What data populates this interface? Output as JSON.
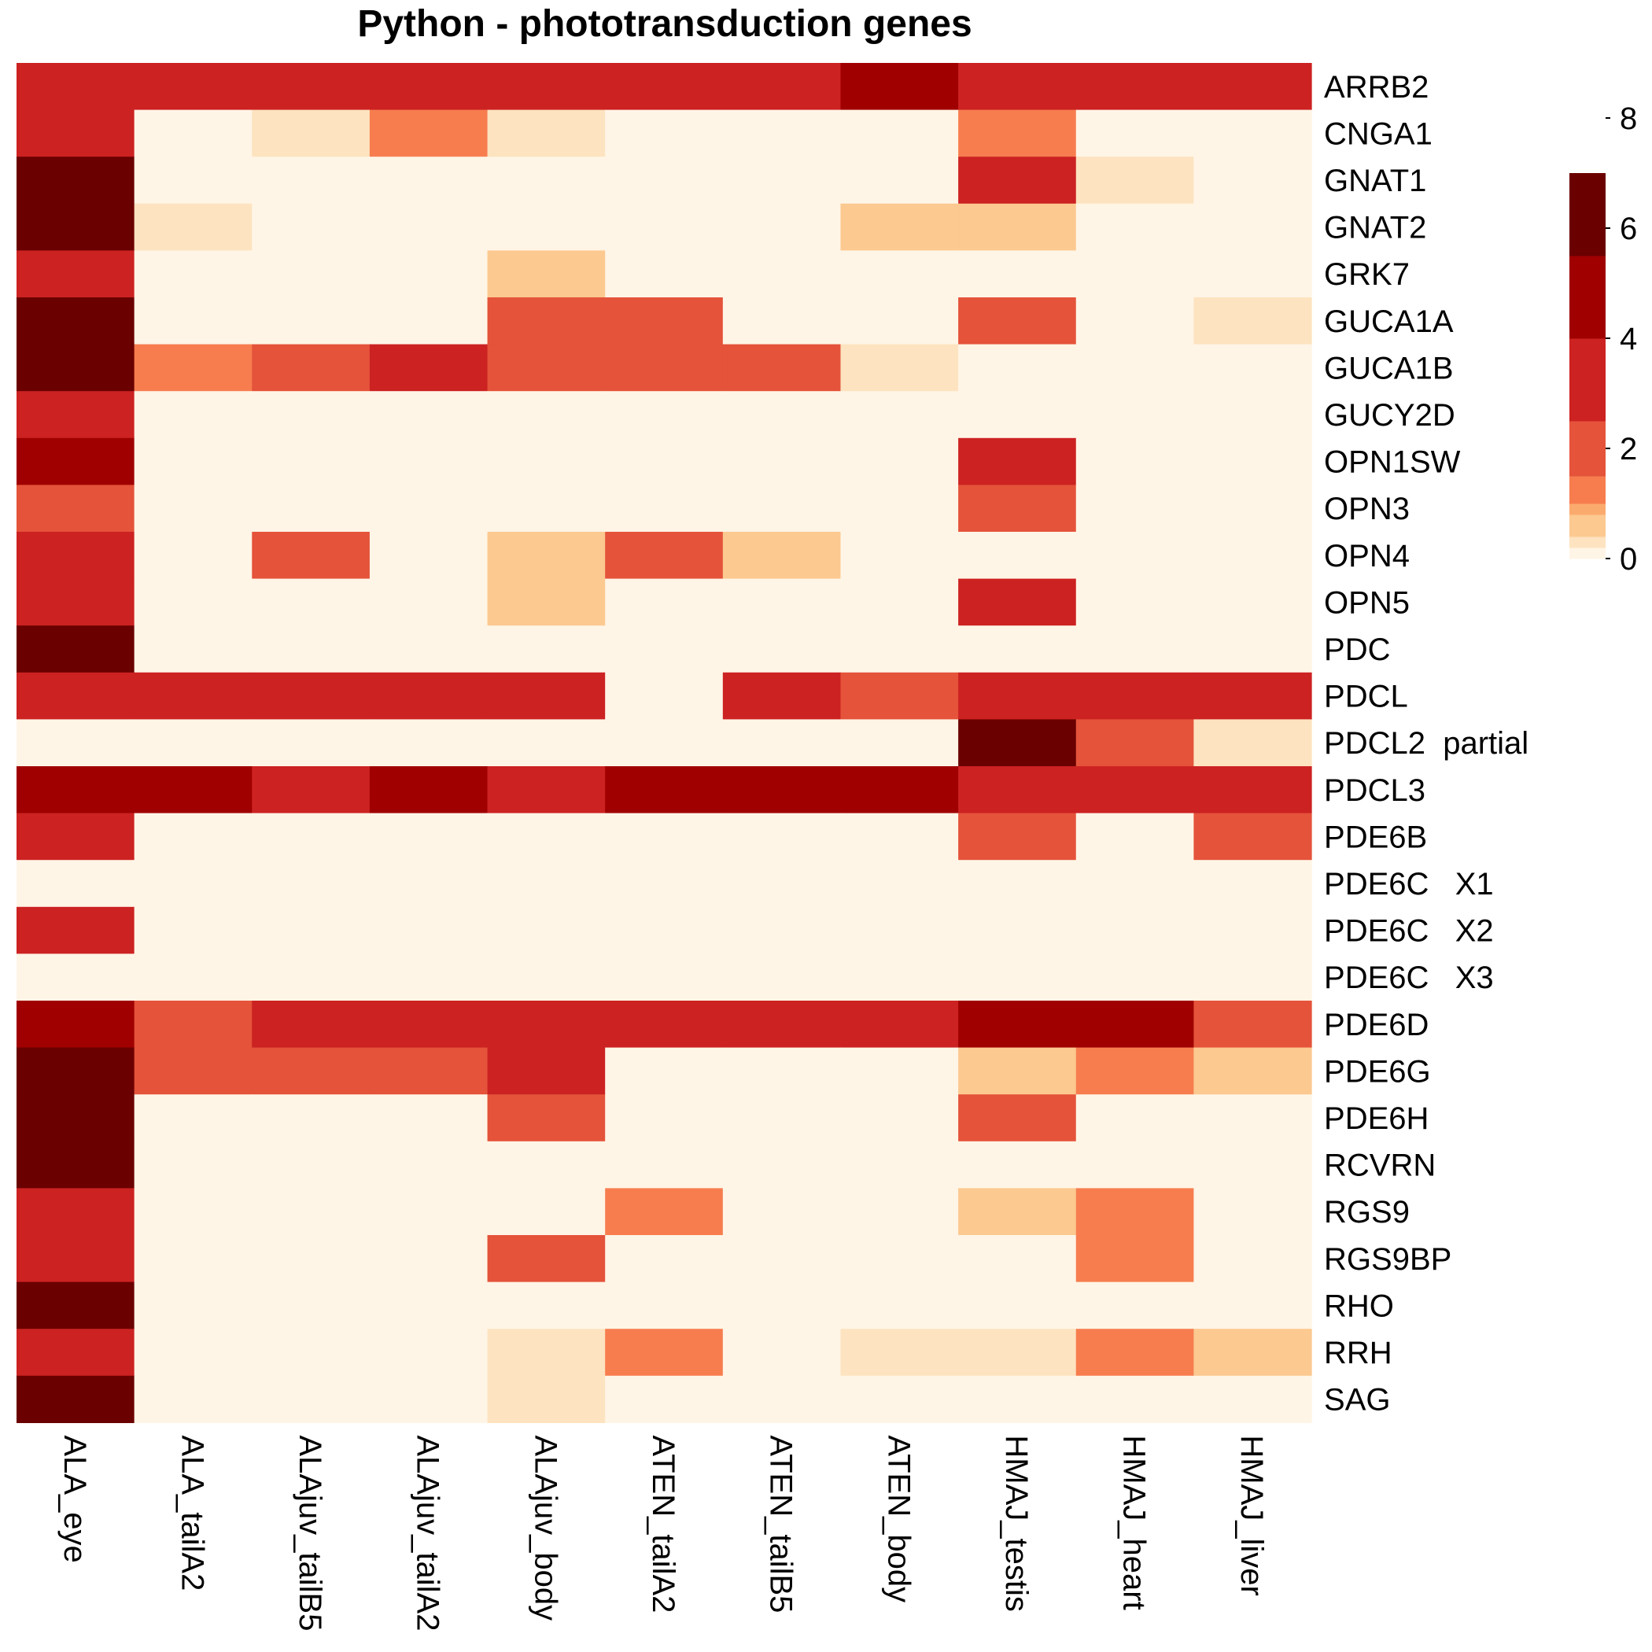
{
  "chart_data": {
    "type": "heatmap",
    "title": "Python - phototransduction genes",
    "rows": [
      "ARRB2",
      "CNGA1",
      "GNAT1",
      "GNAT2",
      "GRK7",
      "GUCA1A",
      "GUCA1B",
      "GUCY2D",
      "OPN1SW",
      "OPN3",
      "OPN4",
      "OPN5",
      "PDC",
      "PDCL",
      "PDCL2  partial",
      "PDCL3",
      "PDE6B",
      "PDE6C   X1",
      "PDE6C   X2",
      "PDE6C   X3",
      "PDE6D",
      "PDE6G",
      "PDE6H",
      "RCVRN",
      "RGS9",
      "RGS9BP",
      "RHO",
      "RRH",
      "SAG"
    ],
    "columns": [
      "ALA_eye",
      "ALA_tailA2",
      "ALAjuv_tailB5",
      "ALAjuv_tailA2",
      "ALAjuv_body",
      "ATEN_tailA2",
      "ATEN_tailB5",
      "ATEN_body",
      "HMAJ_testis",
      "HMAJ_heart",
      "HMAJ_liver"
    ],
    "values": [
      [
        3,
        3,
        3,
        3,
        3,
        3,
        3,
        5,
        3,
        3,
        3
      ],
      [
        3,
        0,
        0.3,
        1.2,
        0.3,
        0,
        0,
        0,
        1.2,
        0,
        0
      ],
      [
        7,
        0,
        0,
        0,
        0,
        0,
        0,
        0,
        3,
        0.3,
        0
      ],
      [
        7,
        0.3,
        0,
        0,
        0,
        0,
        0,
        0.6,
        0.6,
        0,
        0
      ],
      [
        3,
        0,
        0,
        0,
        0.6,
        0,
        0,
        0,
        0,
        0,
        0
      ],
      [
        7,
        0,
        0,
        0,
        2,
        2,
        0,
        0,
        2,
        0,
        0.3
      ],
      [
        7,
        1.2,
        2,
        3,
        2,
        2,
        2,
        0.3,
        0,
        0,
        0
      ],
      [
        3,
        0,
        0,
        0,
        0,
        0,
        0,
        0,
        0,
        0,
        0
      ],
      [
        5,
        0,
        0,
        0,
        0,
        0,
        0,
        0,
        3,
        0,
        0
      ],
      [
        2,
        0,
        0,
        0,
        0,
        0,
        0,
        0,
        2,
        0,
        0
      ],
      [
        3,
        0,
        2,
        0,
        0.6,
        2,
        0.6,
        0,
        0,
        0,
        0
      ],
      [
        3,
        0,
        0,
        0,
        0.6,
        0,
        0,
        0,
        3,
        0,
        0
      ],
      [
        7,
        0,
        0,
        0,
        0,
        0,
        0,
        0,
        0,
        0,
        0
      ],
      [
        3,
        3,
        3,
        3,
        3,
        0,
        3,
        2,
        3,
        3,
        3
      ],
      [
        0,
        0,
        0,
        0,
        0,
        0,
        0,
        0,
        8.5,
        2,
        0.3
      ],
      [
        5,
        5,
        3,
        5,
        3,
        5,
        5,
        5,
        3,
        3,
        3
      ],
      [
        3,
        0,
        0,
        0,
        0,
        0,
        0,
        0,
        2,
        0,
        2
      ],
      [
        0,
        0,
        0,
        0,
        0,
        0,
        0,
        0,
        0,
        0,
        0
      ],
      [
        3,
        0,
        0,
        0,
        0,
        0,
        0,
        0,
        0,
        0,
        0
      ],
      [
        0,
        0,
        0,
        0,
        0,
        0,
        0,
        0,
        0,
        0,
        0
      ],
      [
        5,
        2,
        3,
        3,
        3,
        3,
        3,
        3,
        5,
        5,
        2
      ],
      [
        7,
        2,
        2,
        2,
        3,
        0,
        0,
        0,
        0.6,
        1.2,
        0.6
      ],
      [
        8.5,
        0,
        0,
        0,
        2,
        0,
        0,
        0,
        2,
        0,
        0
      ],
      [
        8.5,
        0,
        0,
        0,
        0,
        0,
        0,
        0,
        0,
        0,
        0
      ],
      [
        3,
        0,
        0,
        0,
        0,
        1.2,
        0,
        0,
        0.6,
        1.2,
        0
      ],
      [
        3,
        0,
        0,
        0,
        2,
        0,
        0,
        0,
        0,
        1.2,
        0
      ],
      [
        7,
        0,
        0,
        0,
        0,
        0,
        0,
        0,
        0,
        0,
        0
      ],
      [
        3,
        0,
        0,
        0,
        0.3,
        1.2,
        0,
        0.3,
        0.3,
        1.2,
        0.6
      ],
      [
        7,
        0,
        0,
        0,
        0.3,
        0,
        0,
        0,
        0,
        0,
        0
      ]
    ],
    "color_scale": {
      "breaks": [
        0,
        0.2,
        0.4,
        0.8,
        1,
        1.5,
        2.5,
        4,
        5.5,
        7,
        9
      ],
      "colors": [
        "#fff5e6",
        "#fde3c0",
        "#fcc990",
        "#fbaa6e",
        "#f77d4f",
        "#e4533a",
        "#cc2222",
        "#a00000",
        "#6b0000"
      ],
      "ticks": [
        0,
        2,
        4,
        6,
        8
      ],
      "range": [
        0,
        9
      ]
    },
    "legend_position": "top-right",
    "grid": false
  }
}
